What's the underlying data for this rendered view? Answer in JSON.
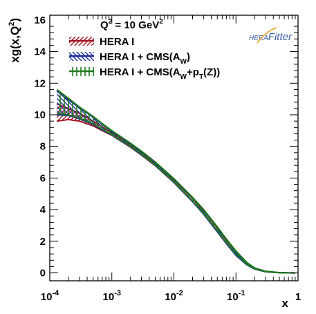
{
  "chart_data": {
    "type": "area",
    "title": "",
    "annotation": {
      "base": "Q",
      "sup": "2",
      "rest": " = 10 GeV",
      "sup2": "2"
    },
    "ylabel": {
      "base": "xg(x,Q",
      "sup": "2",
      "tail": ")"
    },
    "xlabel": "x",
    "x_scale": "log",
    "xlim": [
      0.0001,
      1
    ],
    "ylim": [
      -0.5,
      16.3
    ],
    "y_ticks": [
      0,
      2,
      4,
      6,
      8,
      10,
      12,
      14,
      16
    ],
    "y_tick_labels": [
      "0",
      "2",
      "4",
      "6",
      "8",
      "10",
      "12",
      "14",
      "16"
    ],
    "x_ticks": [
      0.0001,
      0.001,
      0.01,
      0.1,
      1
    ],
    "x_tick_labels": [
      {
        "base": "10",
        "exp": "-4"
      },
      {
        "base": "10",
        "exp": "-3"
      },
      {
        "base": "10",
        "exp": "-2"
      },
      {
        "base": "10",
        "exp": "-1"
      },
      {
        "base": "1",
        "exp": ""
      }
    ],
    "grid": false,
    "legend_position": "top-left",
    "logo": {
      "prefix": "HERA",
      "name": "Fitter"
    },
    "series": [
      {
        "label": "HERA I",
        "label_parts": [
          {
            "t": "HERA I",
            "s": ""
          }
        ],
        "color": "#a0141e",
        "hatch": "diag-right",
        "x": [
          0.00013,
          0.0002,
          0.0003,
          0.0005,
          0.0007,
          0.001,
          0.002,
          0.003,
          0.005,
          0.01,
          0.02,
          0.03,
          0.05,
          0.07,
          0.1,
          0.15,
          0.2,
          0.3,
          0.5,
          0.9
        ],
        "y_low": [
          9.6,
          9.7,
          9.6,
          9.3,
          9.0,
          8.7,
          7.95,
          7.45,
          6.78,
          5.72,
          4.52,
          3.75,
          2.65,
          1.9,
          1.15,
          0.52,
          0.25,
          0.07,
          0.01,
          0.0
        ],
        "y_high": [
          10.7,
          10.4,
          10.1,
          9.6,
          9.25,
          8.85,
          8.1,
          7.6,
          6.92,
          5.88,
          4.72,
          3.95,
          2.85,
          2.08,
          1.32,
          0.62,
          0.3,
          0.1,
          0.02,
          0.0
        ]
      },
      {
        "label": "HERA I + CMS(AW)",
        "label_parts": [
          {
            "t": "HERA I + CMS(A",
            "s": ""
          },
          {
            "t": "W",
            "s": "sub"
          },
          {
            "t": ")",
            "s": ""
          }
        ],
        "color": "#1f2f9c",
        "hatch": "diag-left",
        "x": [
          0.00013,
          0.0002,
          0.0003,
          0.0005,
          0.0007,
          0.001,
          0.002,
          0.003,
          0.005,
          0.01,
          0.02,
          0.03,
          0.05,
          0.07,
          0.1,
          0.15,
          0.2,
          0.3,
          0.5,
          0.9
        ],
        "y_low": [
          10.0,
          9.95,
          9.75,
          9.4,
          9.05,
          8.72,
          7.97,
          7.47,
          6.8,
          5.72,
          4.5,
          3.72,
          2.6,
          1.85,
          1.1,
          0.5,
          0.24,
          0.07,
          0.01,
          0.0
        ],
        "y_high": [
          11.5,
          10.95,
          10.45,
          9.85,
          9.4,
          8.95,
          8.15,
          7.65,
          6.98,
          5.92,
          4.75,
          4.0,
          2.9,
          2.12,
          1.35,
          0.64,
          0.31,
          0.1,
          0.02,
          0.0
        ]
      },
      {
        "label": "HERA I + CMS(AW+pT(Z))",
        "label_parts": [
          {
            "t": "HERA I + CMS(A",
            "s": ""
          },
          {
            "t": "W",
            "s": "sub"
          },
          {
            "t": "+p",
            "s": ""
          },
          {
            "t": "T",
            "s": "sub"
          },
          {
            "t": "(Z))",
            "s": ""
          }
        ],
        "color": "#1f7a1f",
        "hatch": "vertical",
        "x": [
          0.00013,
          0.0002,
          0.0003,
          0.0005,
          0.0007,
          0.001,
          0.002,
          0.003,
          0.005,
          0.01,
          0.02,
          0.03,
          0.05,
          0.07,
          0.1,
          0.15,
          0.2,
          0.3,
          0.5,
          0.9
        ],
        "y_low": [
          10.1,
          10.0,
          9.8,
          9.45,
          9.1,
          8.75,
          8.0,
          7.5,
          6.82,
          5.76,
          4.55,
          3.78,
          2.68,
          1.92,
          1.18,
          0.55,
          0.27,
          0.08,
          0.01,
          0.0
        ],
        "y_high": [
          11.6,
          11.05,
          10.5,
          9.9,
          9.45,
          9.0,
          8.2,
          7.7,
          7.02,
          5.96,
          4.78,
          4.02,
          2.92,
          2.15,
          1.38,
          0.66,
          0.32,
          0.1,
          0.02,
          0.0
        ]
      }
    ]
  }
}
